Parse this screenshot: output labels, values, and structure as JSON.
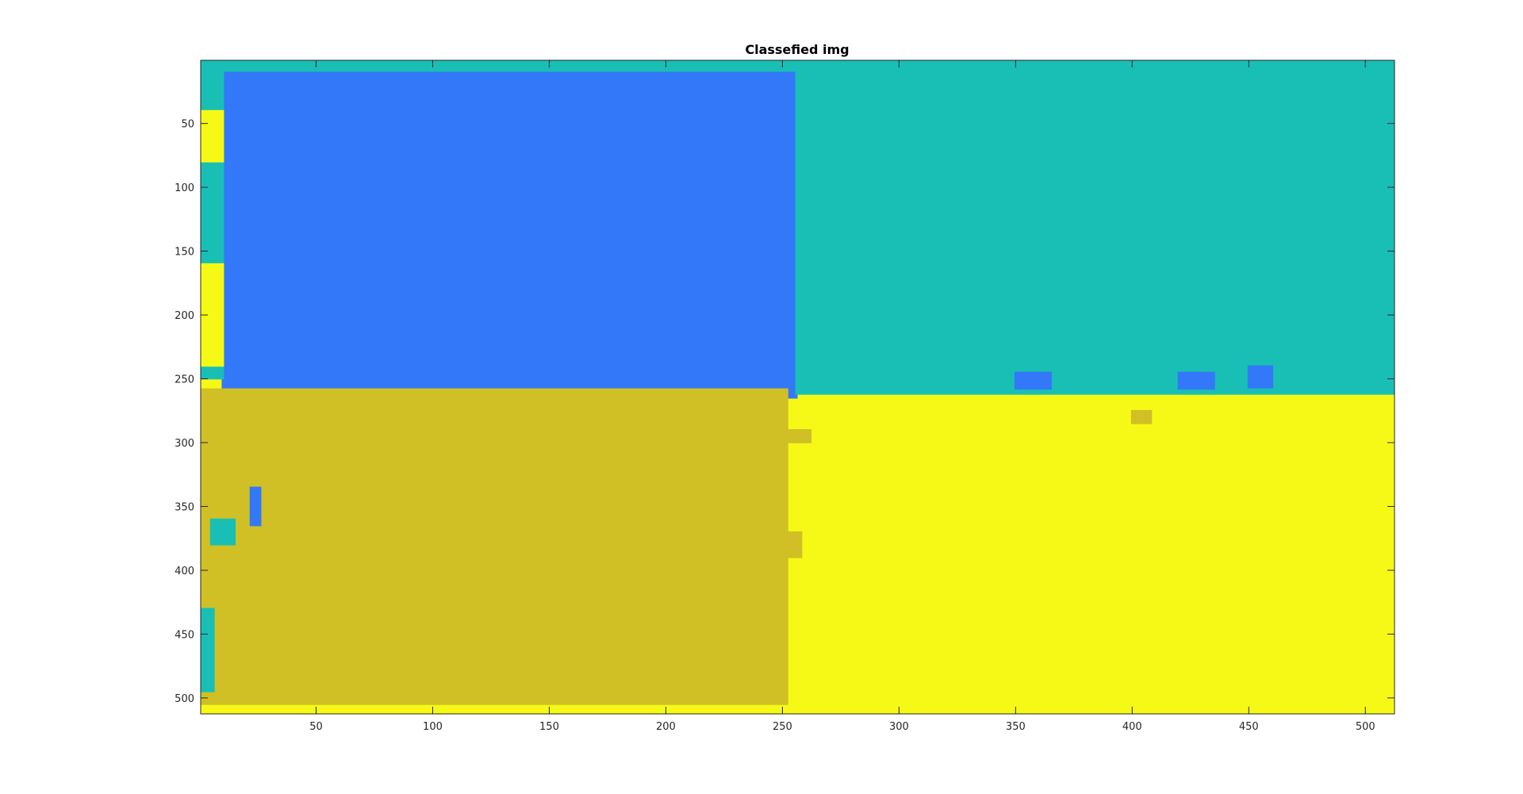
{
  "chart_data": {
    "type": "heatmap",
    "title": "Classefied img",
    "xlabel": "",
    "ylabel": "",
    "xlim": [
      0.5,
      512.5
    ],
    "ylim": [
      0.5,
      512.5
    ],
    "y_reversed": true,
    "grid": false,
    "xticks": [
      50,
      100,
      150,
      200,
      250,
      300,
      350,
      400,
      450,
      500
    ],
    "yticks": [
      50,
      100,
      150,
      200,
      250,
      300,
      350,
      400,
      450,
      500
    ],
    "classes": [
      {
        "color": "#3378F8"
      },
      {
        "color": "#19BFB5"
      },
      {
        "color": "#D0C025"
      },
      {
        "color": "#F6F915"
      }
    ],
    "background_class": 3,
    "regions": [
      {
        "class": 1,
        "x": [
          1,
          512
        ],
        "y": [
          1,
          10
        ]
      },
      {
        "class": 0,
        "x": [
          10,
          256
        ],
        "y": [
          10,
          265
        ]
      },
      {
        "class": 1,
        "x": [
          256,
          512
        ],
        "y": [
          10,
          262
        ]
      },
      {
        "class": 2,
        "x": [
          1,
          252
        ],
        "y": [
          258,
          505
        ]
      },
      {
        "class": 1,
        "x": [
          1,
          10
        ],
        "y": [
          10,
          250
        ]
      },
      {
        "class": 3,
        "x": [
          1,
          10
        ],
        "y": [
          160,
          240
        ]
      },
      {
        "class": 3,
        "x": [
          1,
          10
        ],
        "y": [
          40,
          80
        ]
      },
      {
        "class": 1,
        "x": [
          1,
          6
        ],
        "y": [
          430,
          495
        ]
      },
      {
        "class": 0,
        "x": [
          22,
          26
        ],
        "y": [
          335,
          365
        ]
      },
      {
        "class": 1,
        "x": [
          5,
          15
        ],
        "y": [
          360,
          380
        ]
      },
      {
        "class": 2,
        "x": [
          252,
          262
        ],
        "y": [
          290,
          300
        ]
      },
      {
        "class": 2,
        "x": [
          400,
          408
        ],
        "y": [
          275,
          285
        ]
      },
      {
        "class": 2,
        "x": [
          250,
          258
        ],
        "y": [
          370,
          390
        ]
      },
      {
        "class": 0,
        "x": [
          350,
          365
        ],
        "y": [
          245,
          258
        ]
      },
      {
        "class": 0,
        "x": [
          420,
          435
        ],
        "y": [
          245,
          258
        ]
      },
      {
        "class": 0,
        "x": [
          450,
          460
        ],
        "y": [
          240,
          257
        ]
      }
    ]
  }
}
